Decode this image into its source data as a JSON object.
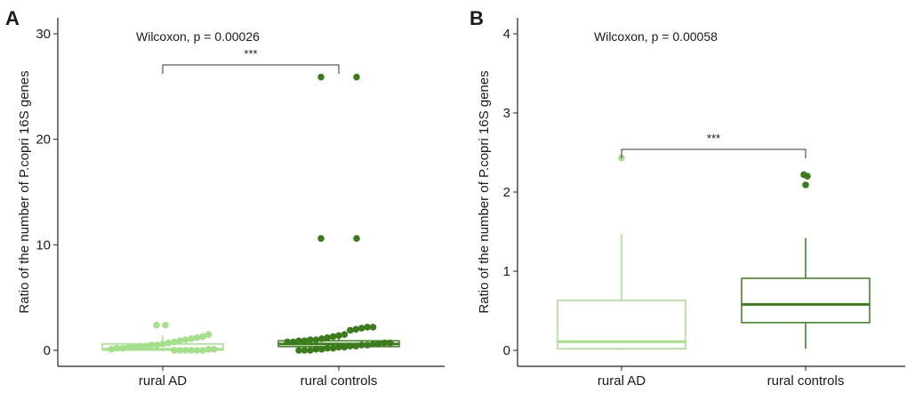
{
  "colors": {
    "ad": "#a3e08a",
    "controls": "#3b7d1a",
    "axis": "#222222"
  },
  "chart_data": [
    {
      "type": "box",
      "panel_label": "A",
      "categories": [
        "rural AD",
        "rural controls"
      ],
      "ylabel": "Ratio of the number of P.copri 16S genes",
      "ylim": [
        0,
        31
      ],
      "yticks": [
        0,
        10,
        20,
        30
      ],
      "annotation": "Wilcoxon, p = 0.00026",
      "significance": "***",
      "boxes": [
        {
          "name": "rural AD",
          "q1": 0.02,
          "median": 0.1,
          "q3": 0.6,
          "whisker_low": 0.0,
          "whisker_high": 1.4
        },
        {
          "name": "rural controls",
          "q1": 0.35,
          "median": 0.6,
          "q3": 0.9,
          "whisker_low": 0.0,
          "whisker_high": 1.4
        }
      ],
      "points": [
        {
          "group": 0,
          "values": [
            2.4,
            2.4,
            1.5,
            1.3,
            1.2,
            1.1,
            1.0,
            0.9,
            0.8,
            0.7,
            0.6,
            0.5,
            0.5,
            0.4,
            0.4,
            0.3,
            0.3,
            0.2,
            0.2,
            0.1,
            0.1,
            0.1,
            0.0,
            0.0,
            0.0,
            0.0,
            0.0,
            0.0
          ]
        },
        {
          "group": 1,
          "values": [
            25.9,
            25.9,
            10.6,
            10.6,
            2.2,
            2.2,
            2.1,
            2.0,
            1.9,
            1.5,
            1.4,
            1.3,
            1.2,
            1.1,
            1.0,
            1.0,
            0.9,
            0.9,
            0.8,
            0.8,
            0.7,
            0.7,
            0.6,
            0.6,
            0.5,
            0.5,
            0.4,
            0.4,
            0.3,
            0.3,
            0.2,
            0.2,
            0.1,
            0.1,
            0.0,
            0.0,
            0.0
          ]
        }
      ]
    },
    {
      "type": "box",
      "panel_label": "B",
      "categories": [
        "rural AD",
        "rural controls"
      ],
      "ylabel": "Ratio of the number of P.copri 16S genes",
      "ylim": [
        0,
        4.15
      ],
      "yticks": [
        0,
        1,
        2,
        3,
        4
      ],
      "annotation": "Wilcoxon, p = 0.00058",
      "significance": "***",
      "boxes": [
        {
          "name": "rural AD",
          "q1": 0.02,
          "median": 0.11,
          "q3": 0.63,
          "whisker_low": 0.0,
          "whisker_high": 1.47
        },
        {
          "name": "rural controls",
          "q1": 0.35,
          "median": 0.58,
          "q3": 0.91,
          "whisker_low": 0.02,
          "whisker_high": 1.42
        }
      ],
      "points": [
        {
          "group": 0,
          "values": [
            2.43
          ]
        },
        {
          "group": 1,
          "values": [
            2.22,
            2.2,
            2.09
          ]
        }
      ]
    }
  ]
}
